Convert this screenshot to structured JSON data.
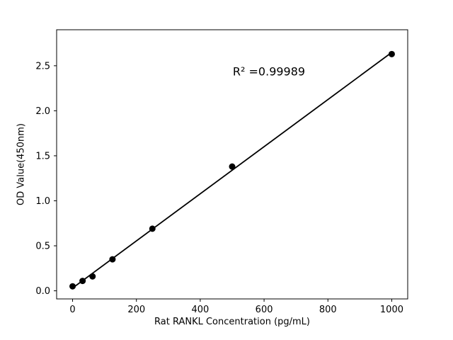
{
  "chart_data": {
    "type": "scatter",
    "x": [
      0,
      31.25,
      62.5,
      125,
      250,
      500,
      1000
    ],
    "y": [
      0.05,
      0.11,
      0.16,
      0.35,
      0.69,
      1.38,
      2.63
    ],
    "fit_line": true,
    "annotation": "R² =0.99989",
    "xlabel": "Rat RANKL Concentration (pg/mL)",
    "ylabel": "OD Value(450nm)",
    "xticks": [
      0,
      200,
      400,
      600,
      800,
      1000
    ],
    "xtick_labels": [
      "0",
      "200",
      "400",
      "600",
      "800",
      "1000"
    ],
    "yticks": [
      0.0,
      0.5,
      1.0,
      1.5,
      2.0,
      2.5
    ],
    "ytick_labels": [
      "0.0",
      "0.5",
      "1.0",
      "1.5",
      "2.0",
      "2.5"
    ],
    "xlim": [
      -50,
      1050
    ],
    "ylim": [
      -0.09,
      2.9
    ],
    "grid": false,
    "legend": "none",
    "marker_color": "#000000",
    "line_color": "#000000",
    "background_color": "#ffffff"
  }
}
